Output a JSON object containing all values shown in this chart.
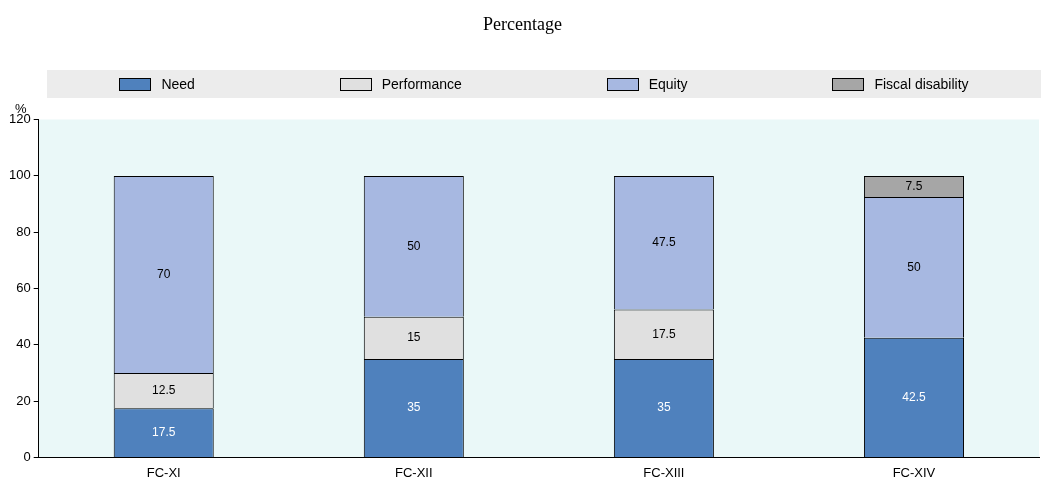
{
  "chart_data": {
    "type": "bar",
    "title": "Percentage",
    "ylabel": "%",
    "stacked": true,
    "categories": [
      "FC-XI",
      "FC-XII",
      "FC-XIII",
      "FC-XIV"
    ],
    "series": [
      {
        "name": "Need",
        "color": "#4f81bd",
        "values": [
          17.5,
          35,
          35,
          42.5
        ]
      },
      {
        "name": "Performance",
        "color": "#e0e0e0",
        "values": [
          12.5,
          15,
          17.5,
          null
        ]
      },
      {
        "name": "Equity",
        "color": "#a7b8e1",
        "values": [
          70,
          50,
          47.5,
          50
        ]
      },
      {
        "name": "Fiscal disability",
        "color": "#a6a6a6",
        "values": [
          null,
          null,
          null,
          7.5
        ]
      }
    ],
    "ylim": [
      0,
      120
    ],
    "yticks": [
      0,
      20,
      40,
      60,
      80,
      100,
      120
    ],
    "grid": false,
    "legend": "top",
    "data_labels": true
  }
}
